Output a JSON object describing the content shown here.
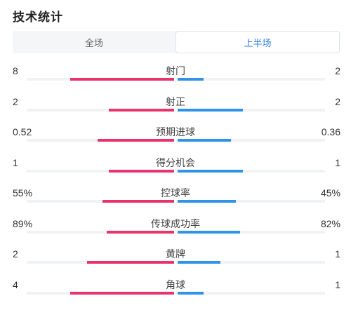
{
  "title": "技术统计",
  "tabs": [
    {
      "label": "全场",
      "active": false
    },
    {
      "label": "上半场",
      "active": true
    }
  ],
  "colors": {
    "home": "#e8336b",
    "away": "#2f94e8",
    "active_tab": "#2f80ed"
  },
  "stats": [
    {
      "label": "射门",
      "home": "8",
      "away": "2",
      "home_share": 0.8,
      "away_share": 0.2
    },
    {
      "label": "射正",
      "home": "2",
      "away": "2",
      "home_share": 0.5,
      "away_share": 0.5
    },
    {
      "label": "预期进球",
      "home": "0.52",
      "away": "0.36",
      "home_share": 0.59,
      "away_share": 0.41
    },
    {
      "label": "得分机会",
      "home": "1",
      "away": "1",
      "home_share": 0.5,
      "away_share": 0.5
    },
    {
      "label": "控球率",
      "home": "55%",
      "away": "45%",
      "home_share": 0.55,
      "away_share": 0.45
    },
    {
      "label": "传球成功率",
      "home": "89%",
      "away": "82%",
      "home_share": 0.52,
      "away_share": 0.48
    },
    {
      "label": "黄牌",
      "home": "2",
      "away": "1",
      "home_share": 0.67,
      "away_share": 0.33
    },
    {
      "label": "角球",
      "home": "4",
      "away": "1",
      "home_share": 0.8,
      "away_share": 0.2
    }
  ]
}
